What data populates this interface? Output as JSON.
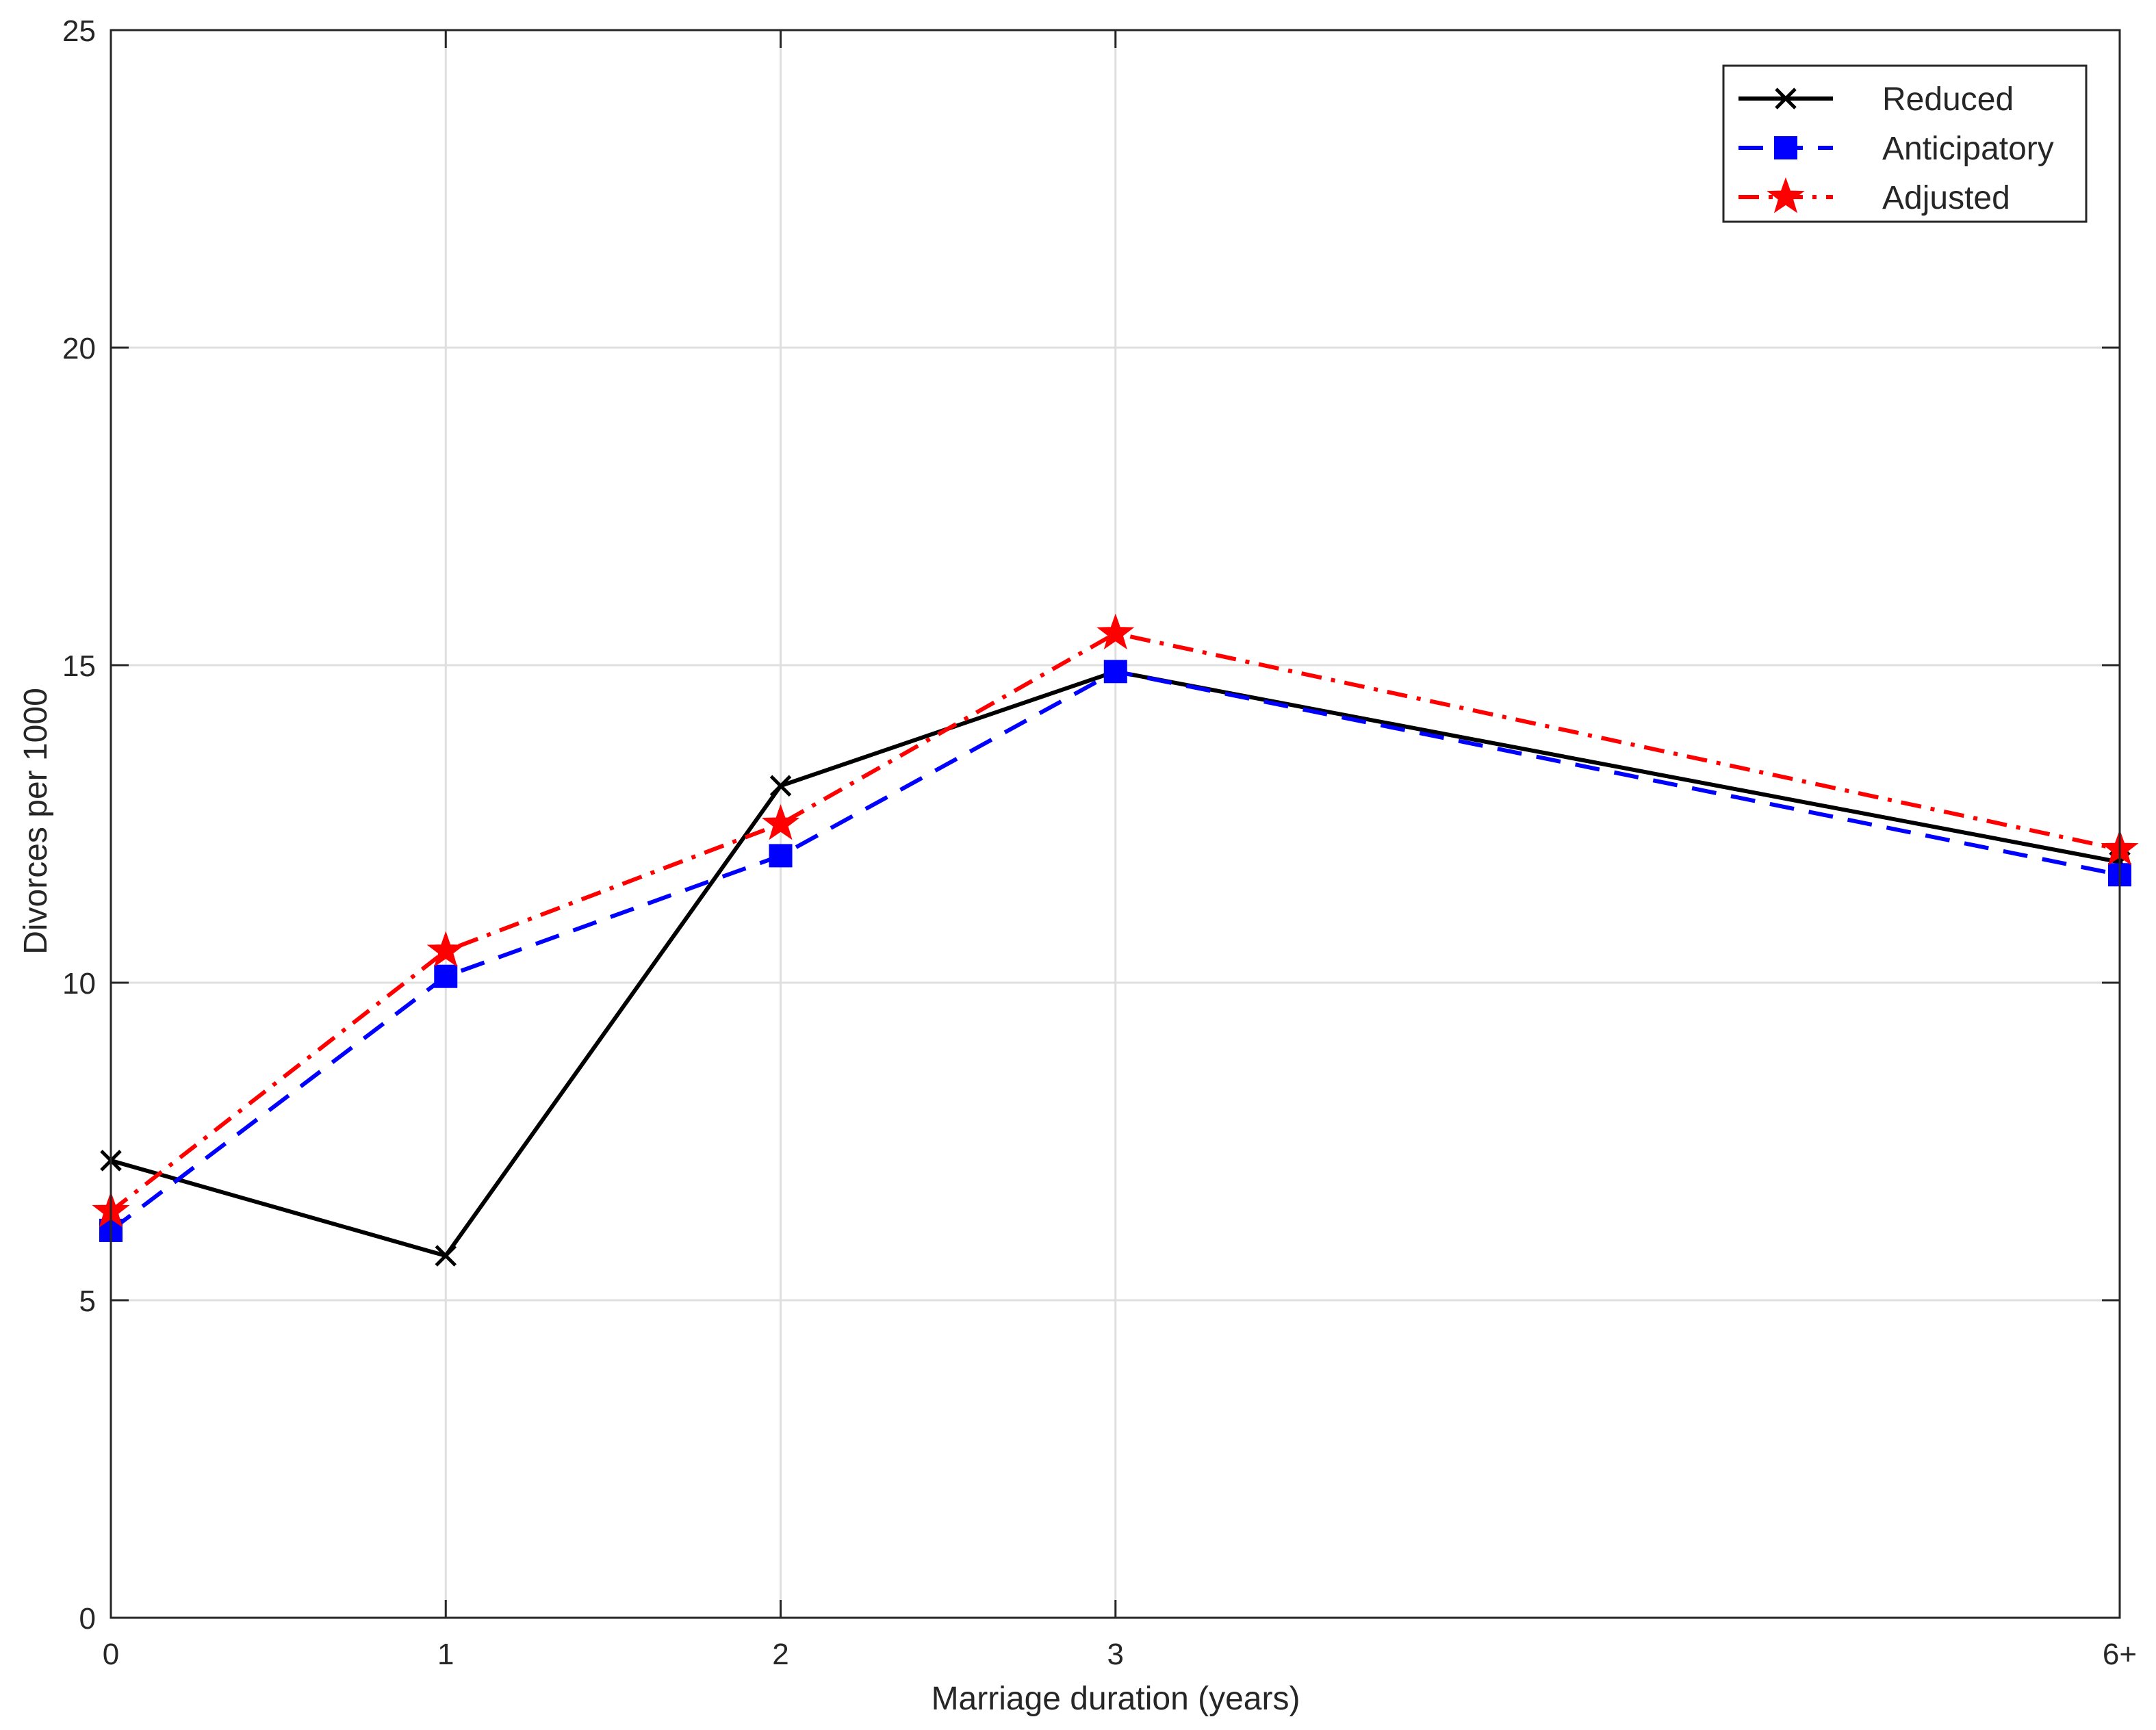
{
  "chart_data": {
    "type": "line",
    "xlabel": "Marriage duration (years)",
    "ylabel": "Divorces per 1000",
    "x_positions": [
      0,
      1,
      2,
      3,
      6
    ],
    "x_tick_labels": [
      "0",
      "1",
      "2",
      "3",
      "6+"
    ],
    "xlim": [
      0,
      6
    ],
    "ylim": [
      0,
      25
    ],
    "y_ticks": [
      0,
      5,
      10,
      15,
      20,
      25
    ],
    "grid": true,
    "legend_position": "top-right",
    "series": [
      {
        "name": "Reduced",
        "values": [
          7.2,
          5.7,
          13.1,
          14.9,
          11.9
        ],
        "color": "#000000",
        "dash": "solid",
        "marker": "x"
      },
      {
        "name": "Anticipatory",
        "values": [
          6.1,
          10.1,
          12.0,
          14.9,
          11.7
        ],
        "color": "#0000ff",
        "dash": "dashed",
        "marker": "square"
      },
      {
        "name": "Adjusted",
        "values": [
          6.4,
          10.5,
          12.5,
          15.5,
          12.1
        ],
        "color": "#ff0000",
        "dash": "dashdot",
        "marker": "star"
      }
    ]
  }
}
